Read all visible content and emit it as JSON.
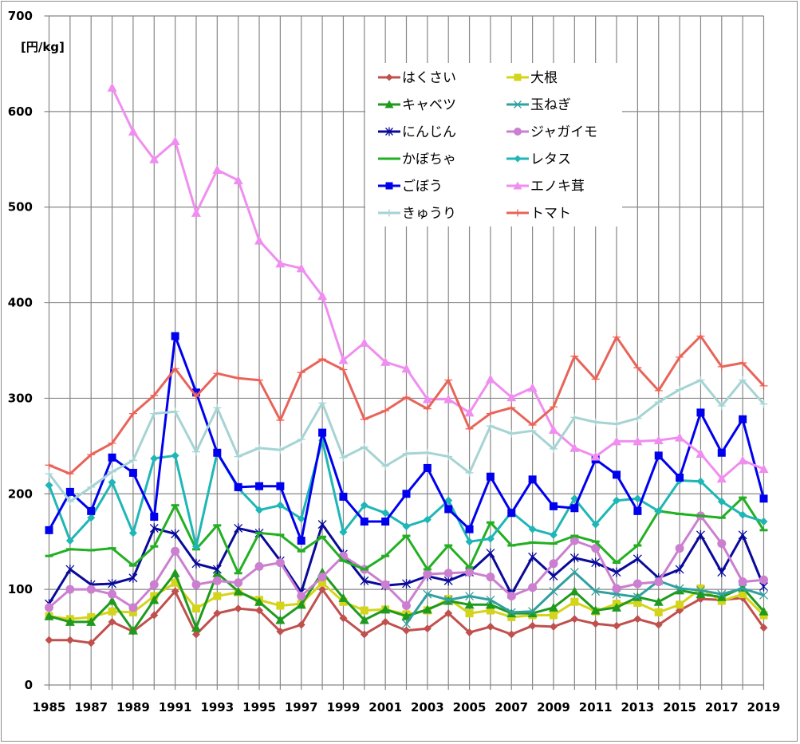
{
  "chart_data": {
    "type": "line",
    "title": "",
    "ylabel": "[円/kg]",
    "xlabel": "",
    "ylim": [
      0,
      700
    ],
    "yticks": [
      0,
      100,
      200,
      300,
      400,
      500,
      600,
      700
    ],
    "xlim": [
      1985,
      2019
    ],
    "xtick_labels": [
      "1985",
      "1987",
      "1989",
      "1991",
      "1993",
      "1995",
      "1997",
      "1999",
      "2001",
      "2003",
      "2005",
      "2007",
      "2009",
      "2011",
      "2013",
      "2015",
      "2017",
      "2019"
    ],
    "grid": "both",
    "legend_position": "top-center",
    "x": [
      1985,
      1986,
      1987,
      1988,
      1989,
      1990,
      1991,
      1992,
      1993,
      1994,
      1995,
      1996,
      1997,
      1998,
      1999,
      2000,
      2001,
      2002,
      2003,
      2004,
      2005,
      2006,
      2007,
      2008,
      2009,
      2010,
      2011,
      2012,
      2013,
      2014,
      2015,
      2016,
      2017,
      2018,
      2019
    ],
    "series": [
      {
        "name": "はくさい",
        "color": "#c0504d",
        "marker": "diamond",
        "values": [
          47,
          47,
          44,
          66,
          56,
          73,
          98,
          53,
          75,
          80,
          78,
          56,
          63,
          100,
          70,
          53,
          66,
          57,
          59,
          75,
          55,
          61,
          53,
          62,
          61,
          69,
          64,
          62,
          69,
          63,
          78,
          90,
          89,
          91,
          60
        ]
      },
      {
        "name": "大根",
        "color": "#d4d41a",
        "marker": "square",
        "values": [
          72,
          69,
          71,
          77,
          76,
          93,
          107,
          80,
          93,
          97,
          89,
          83,
          85,
          107,
          87,
          78,
          79,
          74,
          78,
          90,
          75,
          78,
          71,
          73,
          73,
          87,
          77,
          85,
          86,
          76,
          84,
          101,
          88,
          95,
          73
        ]
      },
      {
        "name": "キャベツ",
        "color": "#1e9a1e",
        "marker": "triangle",
        "values": [
          72,
          66,
          66,
          88,
          57,
          89,
          117,
          60,
          117,
          98,
          87,
          68,
          84,
          118,
          91,
          68,
          79,
          72,
          79,
          88,
          84,
          84,
          75,
          75,
          81,
          98,
          78,
          81,
          92,
          87,
          99,
          95,
          92,
          102,
          77
        ]
      },
      {
        "name": "玉ねぎ",
        "color": "#31a0a0",
        "marker": "x",
        "values": [
          null,
          null,
          null,
          null,
          null,
          null,
          null,
          null,
          null,
          null,
          null,
          null,
          null,
          null,
          null,
          null,
          null,
          64,
          95,
          89,
          93,
          89,
          76,
          77,
          98,
          118,
          98,
          95,
          92,
          109,
          101,
          99,
          95,
          101,
          94
        ]
      },
      {
        "name": "にんじん",
        "color": "#0a0a9a",
        "marker": "asterisk",
        "values": [
          85,
          121,
          105,
          106,
          112,
          164,
          158,
          127,
          121,
          164,
          159,
          130,
          97,
          168,
          137,
          109,
          104,
          106,
          114,
          109,
          118,
          138,
          95,
          134,
          114,
          133,
          128,
          118,
          132,
          112,
          121,
          157,
          118,
          157,
          103
        ]
      },
      {
        "name": "ジャガイモ",
        "color": "#cc7fd0",
        "marker": "circle",
        "values": [
          81,
          100,
          100,
          95,
          81,
          105,
          140,
          105,
          109,
          107,
          124,
          128,
          93,
          113,
          135,
          121,
          105,
          83,
          116,
          117,
          118,
          113,
          93,
          102,
          127,
          151,
          143,
          101,
          106,
          108,
          143,
          177,
          148,
          108,
          110
        ]
      },
      {
        "name": "かぼちゃ",
        "color": "#22b022",
        "marker": "dash",
        "values": [
          135,
          142,
          141,
          143,
          125,
          145,
          188,
          142,
          167,
          117,
          159,
          157,
          140,
          155,
          130,
          121,
          135,
          156,
          121,
          146,
          123,
          170,
          146,
          149,
          148,
          156,
          150,
          128,
          146,
          182,
          179,
          177,
          175,
          196,
          162
        ]
      },
      {
        "name": "レタス",
        "color": "#1fb6b6",
        "marker": "diamond",
        "values": [
          209,
          151,
          175,
          212,
          159,
          237,
          240,
          145,
          243,
          206,
          183,
          188,
          174,
          256,
          160,
          188,
          180,
          166,
          173,
          193,
          150,
          153,
          181,
          163,
          157,
          195,
          168,
          193,
          195,
          182,
          214,
          213,
          192,
          178,
          171
        ]
      },
      {
        "name": "ごぼう",
        "color": "#0000ee",
        "marker": "square",
        "values": [
          162,
          202,
          182,
          238,
          222,
          176,
          365,
          306,
          243,
          207,
          208,
          208,
          151,
          264,
          197,
          171,
          171,
          200,
          227,
          184,
          163,
          218,
          180,
          215,
          187,
          185,
          236,
          220,
          182,
          240,
          217,
          285,
          243,
          278,
          195
        ]
      },
      {
        "name": "エノキ茸",
        "color": "#f08ef0",
        "marker": "triangle",
        "values": [
          null,
          null,
          null,
          625,
          579,
          550,
          569,
          494,
          539,
          528,
          465,
          441,
          436,
          407,
          340,
          358,
          338,
          331,
          299,
          299,
          285,
          320,
          301,
          311,
          267,
          248,
          239,
          255,
          255,
          256,
          259,
          242,
          216,
          235,
          226
        ]
      },
      {
        "name": "きゅうり",
        "color": "#a6d3d3",
        "marker": "plus",
        "values": [
          221,
          192,
          207,
          223,
          235,
          284,
          286,
          244,
          290,
          239,
          248,
          246,
          257,
          295,
          238,
          249,
          229,
          242,
          243,
          239,
          222,
          271,
          263,
          266,
          247,
          280,
          275,
          273,
          279,
          296,
          309,
          319,
          292,
          319,
          294
        ]
      },
      {
        "name": "トマト",
        "color": "#e8645a",
        "marker": "plus",
        "values": [
          230,
          221,
          241,
          253,
          284,
          303,
          331,
          302,
          326,
          321,
          319,
          277,
          327,
          341,
          330,
          278,
          287,
          301,
          289,
          319,
          268,
          284,
          290,
          272,
          291,
          344,
          320,
          364,
          332,
          308,
          343,
          365,
          333,
          337,
          313
        ]
      }
    ],
    "legend_order": [
      [
        0,
        1
      ],
      [
        2,
        3
      ],
      [
        4,
        5
      ],
      [
        6,
        7
      ],
      [
        8,
        9
      ],
      [
        10,
        11
      ]
    ]
  }
}
